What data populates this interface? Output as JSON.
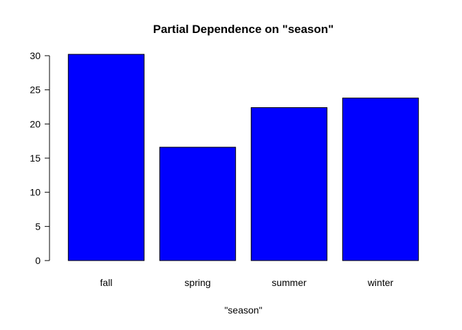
{
  "chart_data": {
    "type": "bar",
    "title": "Partial Dependence on \"season\"",
    "xlabel": "\"season\"",
    "ylabel": "",
    "categories": [
      "fall",
      "spring",
      "summer",
      "winter"
    ],
    "values": [
      30.2,
      16.6,
      22.4,
      23.8
    ],
    "ylim": [
      0,
      30
    ],
    "yticks": [
      "0",
      "5",
      "10",
      "15",
      "20",
      "25",
      "30"
    ],
    "grid": false,
    "legend": "none",
    "bar_color": "#0000FF",
    "bar_border": "#000000"
  }
}
